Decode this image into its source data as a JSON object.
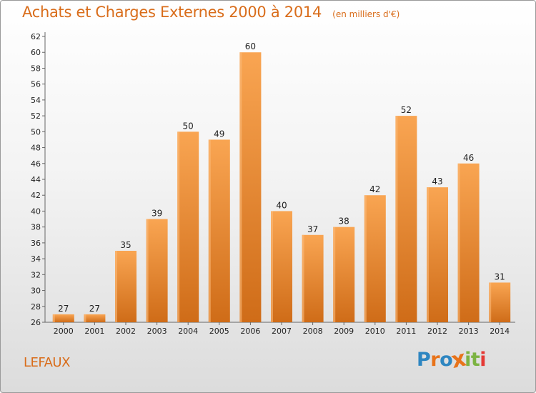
{
  "header": {
    "title": "Achats et Charges Externes 2000 à 2014",
    "unit": "(en milliers d'€)"
  },
  "commune": "LEFAUX",
  "brand": {
    "letters": [
      "P",
      "r",
      "o",
      "x",
      "i",
      "t",
      "i"
    ],
    "colors": [
      "#2e86c1",
      "#e8731a",
      "#2e86c1",
      "#e8731a",
      "#7cb342",
      "#7cb342",
      "#e53935"
    ]
  },
  "colors": {
    "bar_light": "#f9a552",
    "bar_dark": "#cf6c18",
    "accent": "#d96d1b"
  },
  "chart_data": {
    "type": "bar",
    "title": "Achats et Charges Externes 2000 à 2014",
    "subtitle": "(en milliers d'€)",
    "xlabel": "",
    "ylabel": "",
    "categories": [
      "2000",
      "2001",
      "2002",
      "2003",
      "2004",
      "2005",
      "2006",
      "2007",
      "2008",
      "2009",
      "2010",
      "2011",
      "2012",
      "2013",
      "2014"
    ],
    "values": [
      27,
      27,
      35,
      39,
      50,
      49,
      60,
      40,
      37,
      38,
      42,
      52,
      43,
      46,
      31
    ],
    "ylim": [
      26,
      62
    ],
    "ytick_step": 2,
    "grid": false,
    "legend": "none"
  }
}
